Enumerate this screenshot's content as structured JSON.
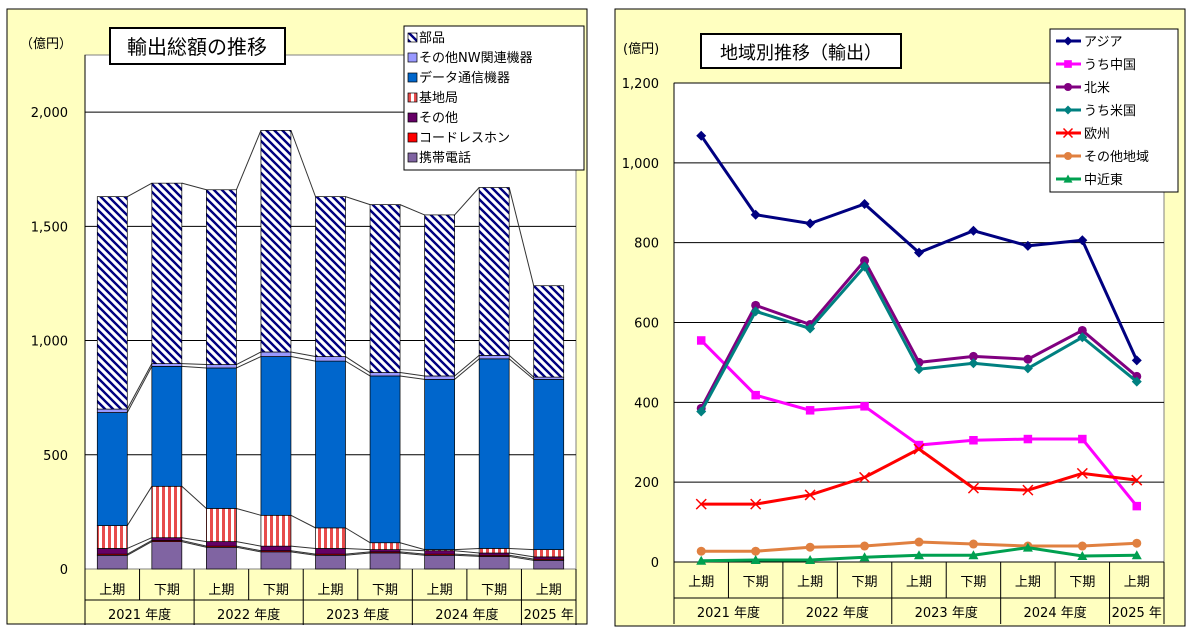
{
  "chart_data": [
    {
      "type": "bar",
      "title": "輸出総額の推移",
      "yunit": "（億円）",
      "ylim": [
        0,
        2250
      ],
      "yticks": [
        0,
        500,
        1000,
        1500,
        2000
      ],
      "ytick_labels": [
        "0",
        "500",
        "1,000",
        "1,500",
        "2,000"
      ],
      "categories": [
        "上期",
        "下期",
        "上期",
        "下期",
        "上期",
        "下期",
        "上期",
        "下期",
        "上期"
      ],
      "groups": [
        {
          "label": "2021 年度",
          "span": 2
        },
        {
          "label": "2022 年度",
          "span": 2
        },
        {
          "label": "2023 年度",
          "span": 2
        },
        {
          "label": "2024 年度",
          "span": 2
        },
        {
          "label": "2025 年",
          "span": 1
        }
      ],
      "series": [
        {
          "name": "携帯電話",
          "color": "#8064a2",
          "values": [
            60,
            120,
            95,
            75,
            60,
            70,
            60,
            55,
            38
          ]
        },
        {
          "name": "コードレスホン",
          "color": "#ff0000",
          "values": [
            5,
            5,
            5,
            5,
            5,
            5,
            5,
            5,
            5
          ]
        },
        {
          "name": "その他",
          "color": "#660066",
          "values": [
            25,
            12,
            20,
            20,
            25,
            10,
            15,
            10,
            10
          ]
        },
        {
          "name": "基地局",
          "color": "#f2a0a0",
          "values": [
            100,
            225,
            145,
            135,
            90,
            30,
            5,
            20,
            32
          ]
        },
        {
          "name": "データ通信機器",
          "color": "#0066cc",
          "values": [
            495,
            525,
            615,
            695,
            730,
            730,
            745,
            830,
            745
          ]
        },
        {
          "name": "その他NW関連機器",
          "color": "#9999ff",
          "values": [
            15,
            12,
            15,
            20,
            20,
            15,
            15,
            15,
            10
          ]
        },
        {
          "name": "部品",
          "color": "#000080",
          "values": [
            930,
            790,
            765,
            970,
            700,
            735,
            705,
            735,
            400
          ]
        }
      ],
      "legend": [
        "部品",
        "その他NW関連機器",
        "データ通信機器",
        "基地局",
        "その他",
        "コードレスホン",
        "携帯電話"
      ]
    },
    {
      "type": "line",
      "title": "地域別推移（輸出）",
      "yunit": "(億円)",
      "ylim": [
        0,
        1200
      ],
      "yticks": [
        0,
        200,
        400,
        600,
        800,
        1000,
        1200
      ],
      "ytick_labels": [
        "0",
        "200",
        "400",
        "600",
        "800",
        "1,000",
        "1,200"
      ],
      "categories": [
        "上期",
        "下期",
        "上期",
        "下期",
        "上期",
        "下期",
        "上期",
        "下期",
        "上期"
      ],
      "groups": [
        {
          "label": "2021 年度",
          "span": 2
        },
        {
          "label": "2022 年度",
          "span": 2
        },
        {
          "label": "2023 年度",
          "span": 2
        },
        {
          "label": "2024 年度",
          "span": 2
        },
        {
          "label": "2025 年",
          "span": 1
        }
      ],
      "series": [
        {
          "name": "アジア",
          "color": "#000080",
          "marker": "diamond",
          "values": [
            1068,
            870,
            848,
            897,
            775,
            830,
            792,
            806,
            505
          ]
        },
        {
          "name": "うち中国",
          "color": "#ff00ff",
          "marker": "square",
          "values": [
            555,
            418,
            380,
            390,
            293,
            305,
            308,
            308,
            140
          ]
        },
        {
          "name": "北米",
          "color": "#800080",
          "marker": "circle",
          "values": [
            385,
            643,
            595,
            755,
            500,
            515,
            508,
            580,
            465
          ]
        },
        {
          "name": "うち米国",
          "color": "#008080",
          "marker": "diamond",
          "values": [
            377,
            628,
            585,
            740,
            483,
            498,
            485,
            563,
            452
          ]
        },
        {
          "name": "欧州",
          "color": "#ff0000",
          "marker": "x",
          "values": [
            145,
            145,
            168,
            212,
            283,
            185,
            180,
            222,
            205
          ]
        },
        {
          "name": "その他地域",
          "color": "#e08040",
          "marker": "circle",
          "values": [
            27,
            27,
            37,
            40,
            50,
            45,
            40,
            40,
            47
          ]
        },
        {
          "name": "中近東",
          "color": "#00a050",
          "marker": "triangle",
          "values": [
            3,
            5,
            5,
            12,
            17,
            17,
            36,
            15,
            17
          ]
        }
      ]
    }
  ]
}
